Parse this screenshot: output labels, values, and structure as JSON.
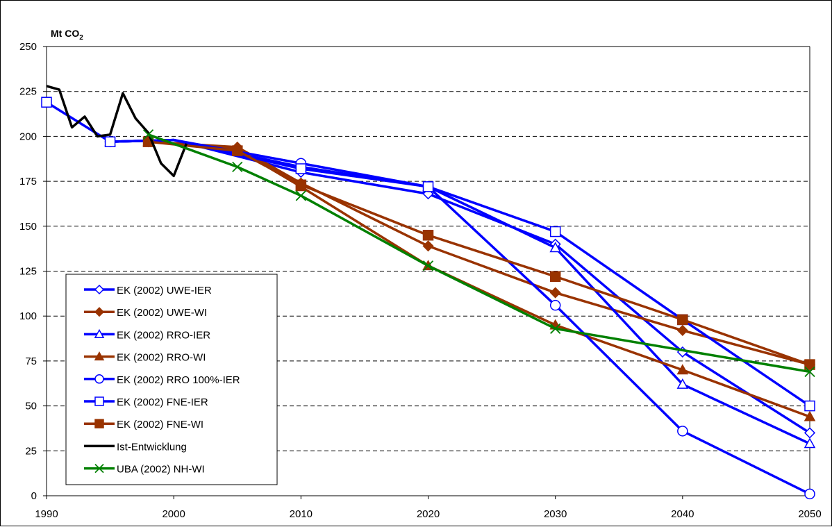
{
  "chart_data": {
    "type": "line",
    "ylabel": "Mt CO",
    "ylabel_sub": "2",
    "xlim": [
      1990,
      2050
    ],
    "ylim": [
      0,
      250
    ],
    "xticks": [
      1990,
      2000,
      2010,
      2020,
      2030,
      2040,
      2050
    ],
    "yticks": [
      0,
      25,
      50,
      75,
      100,
      125,
      150,
      175,
      200,
      225,
      250
    ],
    "grid": "horizontal dashed",
    "legend_position": "left",
    "series": [
      {
        "name": "EK (2002) UWE-IER",
        "color": "#0000ff",
        "marker": "diamond",
        "filled": false,
        "x": [
          1995,
          2000,
          2010,
          2020,
          2030,
          2040,
          2050
        ],
        "y": [
          197,
          198,
          180,
          168,
          140,
          80,
          35
        ]
      },
      {
        "name": "EK (2002) UWE-WI",
        "color": "#993300",
        "marker": "diamond",
        "filled": true,
        "x": [
          1998,
          2005,
          2010,
          2020,
          2030,
          2040,
          2050
        ],
        "y": [
          197,
          194,
          174,
          139,
          113,
          92,
          73
        ]
      },
      {
        "name": "EK (2002) RRO-IER",
        "color": "#0000ff",
        "marker": "triangle",
        "filled": false,
        "x": [
          1995,
          2000,
          2010,
          2020,
          2030,
          2040,
          2050
        ],
        "y": [
          197,
          198,
          183,
          172,
          138,
          62,
          29
        ]
      },
      {
        "name": "EK (2002) RRO-WI",
        "color": "#993300",
        "marker": "triangle",
        "filled": true,
        "x": [
          1998,
          2005,
          2010,
          2020,
          2030,
          2040,
          2050
        ],
        "y": [
          197,
          193,
          172,
          128,
          95,
          70,
          44
        ]
      },
      {
        "name": "EK (2002) RRO 100%-IER",
        "color": "#0000ff",
        "marker": "circle",
        "filled": false,
        "x": [
          1995,
          2000,
          2010,
          2020,
          2030,
          2040,
          2050
        ],
        "y": [
          197,
          198,
          185,
          172,
          106,
          36,
          1
        ]
      },
      {
        "name": "EK (2002) FNE-IER",
        "color": "#0000ff",
        "marker": "square",
        "filled": false,
        "x": [
          1990,
          1995,
          2000,
          2010,
          2020,
          2030,
          2040,
          2050
        ],
        "y": [
          219,
          197,
          198,
          182,
          172,
          147,
          98,
          50
        ]
      },
      {
        "name": "EK (2002) FNE-WI",
        "color": "#993300",
        "marker": "square",
        "filled": true,
        "x": [
          1998,
          2005,
          2010,
          2020,
          2030,
          2040,
          2050
        ],
        "y": [
          197,
          192,
          173,
          145,
          122,
          98,
          73
        ]
      },
      {
        "name": "Ist-Entwicklung",
        "color": "#000000",
        "marker": "none",
        "filled": false,
        "x": [
          1990,
          1991,
          1992,
          1993,
          1994,
          1995,
          1996,
          1997,
          1998,
          1999,
          2000,
          2001
        ],
        "y": [
          228,
          226,
          205,
          211,
          200,
          201,
          224,
          210,
          202,
          185,
          178,
          196
        ]
      },
      {
        "name": "UBA (2002) NH-WI",
        "color": "#008000",
        "marker": "x",
        "filled": false,
        "x": [
          1998,
          2005,
          2010,
          2020,
          2030,
          2050
        ],
        "y": [
          201,
          183,
          167,
          128,
          93,
          69
        ]
      }
    ]
  }
}
